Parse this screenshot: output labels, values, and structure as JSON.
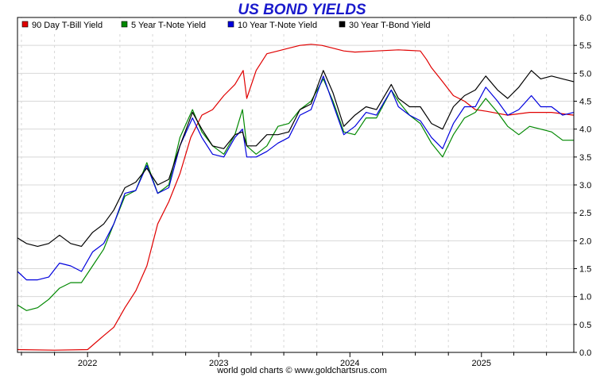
{
  "title": "US BOND YIELDS",
  "footer": "world gold charts © www.goldchartsrus.com",
  "colors": {
    "tbill": "#e00000",
    "note5": "#008800",
    "note10": "#0000dd",
    "bond30": "#000000",
    "grid": "#d8d8d8"
  },
  "chart_data": {
    "type": "line",
    "title": "US BOND YIELDS",
    "xlabel": "",
    "ylabel": "",
    "xlim": [
      "2021-06-20",
      "2025-09-15"
    ],
    "ylim": [
      0,
      6
    ],
    "y_ticks": [
      "0.0",
      "0.5",
      "1.0",
      "1.5",
      "2.0",
      "2.5",
      "3.0",
      "3.5",
      "4.0",
      "4.5",
      "5.0",
      "5.5",
      "6.0"
    ],
    "x_ticks": [
      {
        "label": "2022",
        "date": "2022-01-01"
      },
      {
        "label": "2023",
        "date": "2023-01-01"
      },
      {
        "label": "2024",
        "date": "2024-01-01"
      },
      {
        "label": "2025",
        "date": "2025-01-01"
      }
    ],
    "grid": true,
    "legend_position": "top",
    "series": [
      {
        "name": "90 Day T-Bill Yield",
        "key": "tbill",
        "points": [
          [
            "2021-06-20",
            0.05
          ],
          [
            "2021-10-01",
            0.04
          ],
          [
            "2022-01-01",
            0.05
          ],
          [
            "2022-02-15",
            0.3
          ],
          [
            "2022-03-15",
            0.45
          ],
          [
            "2022-04-15",
            0.8
          ],
          [
            "2022-05-15",
            1.1
          ],
          [
            "2022-06-15",
            1.55
          ],
          [
            "2022-07-15",
            2.3
          ],
          [
            "2022-08-15",
            2.7
          ],
          [
            "2022-09-15",
            3.2
          ],
          [
            "2022-10-15",
            3.85
          ],
          [
            "2022-11-15",
            4.25
          ],
          [
            "2022-12-15",
            4.35
          ],
          [
            "2023-01-15",
            4.6
          ],
          [
            "2023-02-15",
            4.8
          ],
          [
            "2023-03-10",
            5.05
          ],
          [
            "2023-03-20",
            4.55
          ],
          [
            "2023-04-15",
            5.05
          ],
          [
            "2023-05-15",
            5.35
          ],
          [
            "2023-06-15",
            5.4
          ],
          [
            "2023-07-15",
            5.45
          ],
          [
            "2023-08-15",
            5.5
          ],
          [
            "2023-09-15",
            5.52
          ],
          [
            "2023-10-15",
            5.5
          ],
          [
            "2023-11-15",
            5.45
          ],
          [
            "2023-12-15",
            5.4
          ],
          [
            "2024-01-15",
            5.38
          ],
          [
            "2024-03-15",
            5.4
          ],
          [
            "2024-05-15",
            5.42
          ],
          [
            "2024-07-15",
            5.4
          ],
          [
            "2024-08-01",
            5.25
          ],
          [
            "2024-08-15",
            5.1
          ],
          [
            "2024-09-15",
            4.85
          ],
          [
            "2024-10-15",
            4.6
          ],
          [
            "2024-11-15",
            4.5
          ],
          [
            "2024-12-15",
            4.35
          ],
          [
            "2025-01-15",
            4.32
          ],
          [
            "2025-03-15",
            4.25
          ],
          [
            "2025-05-15",
            4.3
          ],
          [
            "2025-07-15",
            4.3
          ],
          [
            "2025-09-15",
            4.25
          ]
        ]
      },
      {
        "name": "5 Year T-Note Yield",
        "key": "note5",
        "points": [
          [
            "2021-06-20",
            0.85
          ],
          [
            "2021-07-15",
            0.75
          ],
          [
            "2021-08-15",
            0.8
          ],
          [
            "2021-09-15",
            0.95
          ],
          [
            "2021-10-15",
            1.15
          ],
          [
            "2021-11-15",
            1.25
          ],
          [
            "2021-12-15",
            1.25
          ],
          [
            "2022-01-15",
            1.55
          ],
          [
            "2022-02-15",
            1.85
          ],
          [
            "2022-03-15",
            2.3
          ],
          [
            "2022-04-15",
            2.8
          ],
          [
            "2022-05-15",
            2.9
          ],
          [
            "2022-06-15",
            3.4
          ],
          [
            "2022-07-15",
            2.85
          ],
          [
            "2022-08-15",
            3.0
          ],
          [
            "2022-09-15",
            3.85
          ],
          [
            "2022-10-20",
            4.35
          ],
          [
            "2022-11-15",
            3.95
          ],
          [
            "2022-12-15",
            3.7
          ],
          [
            "2023-01-15",
            3.55
          ],
          [
            "2023-02-15",
            3.9
          ],
          [
            "2023-03-08",
            4.35
          ],
          [
            "2023-03-20",
            3.7
          ],
          [
            "2023-04-15",
            3.55
          ],
          [
            "2023-05-15",
            3.7
          ],
          [
            "2023-06-15",
            4.05
          ],
          [
            "2023-07-15",
            4.1
          ],
          [
            "2023-08-15",
            4.35
          ],
          [
            "2023-09-15",
            4.5
          ],
          [
            "2023-10-19",
            4.9
          ],
          [
            "2023-11-15",
            4.5
          ],
          [
            "2023-12-15",
            3.95
          ],
          [
            "2024-01-15",
            3.9
          ],
          [
            "2024-02-15",
            4.2
          ],
          [
            "2024-03-15",
            4.2
          ],
          [
            "2024-04-25",
            4.7
          ],
          [
            "2024-05-15",
            4.5
          ],
          [
            "2024-06-15",
            4.25
          ],
          [
            "2024-07-15",
            4.1
          ],
          [
            "2024-08-15",
            3.75
          ],
          [
            "2024-09-15",
            3.5
          ],
          [
            "2024-10-15",
            3.9
          ],
          [
            "2024-11-15",
            4.2
          ],
          [
            "2024-12-15",
            4.3
          ],
          [
            "2025-01-13",
            4.55
          ],
          [
            "2025-02-15",
            4.3
          ],
          [
            "2025-03-15",
            4.05
          ],
          [
            "2025-04-15",
            3.9
          ],
          [
            "2025-05-15",
            4.05
          ],
          [
            "2025-06-15",
            4.0
          ],
          [
            "2025-07-15",
            3.95
          ],
          [
            "2025-08-15",
            3.8
          ],
          [
            "2025-09-15",
            3.8
          ]
        ]
      },
      {
        "name": "10 Year T-Note Yield",
        "key": "note10",
        "points": [
          [
            "2021-06-20",
            1.45
          ],
          [
            "2021-07-15",
            1.3
          ],
          [
            "2021-08-15",
            1.3
          ],
          [
            "2021-09-15",
            1.35
          ],
          [
            "2021-10-15",
            1.6
          ],
          [
            "2021-11-15",
            1.55
          ],
          [
            "2021-12-15",
            1.45
          ],
          [
            "2022-01-15",
            1.8
          ],
          [
            "2022-02-15",
            1.95
          ],
          [
            "2022-03-15",
            2.3
          ],
          [
            "2022-04-15",
            2.85
          ],
          [
            "2022-05-15",
            2.9
          ],
          [
            "2022-06-15",
            3.35
          ],
          [
            "2022-07-15",
            2.85
          ],
          [
            "2022-08-15",
            2.95
          ],
          [
            "2022-09-15",
            3.7
          ],
          [
            "2022-10-20",
            4.2
          ],
          [
            "2022-11-15",
            3.85
          ],
          [
            "2022-12-15",
            3.55
          ],
          [
            "2023-01-15",
            3.5
          ],
          [
            "2023-02-15",
            3.85
          ],
          [
            "2023-03-08",
            4.0
          ],
          [
            "2023-03-20",
            3.5
          ],
          [
            "2023-04-15",
            3.5
          ],
          [
            "2023-05-15",
            3.6
          ],
          [
            "2023-06-15",
            3.75
          ],
          [
            "2023-07-15",
            3.85
          ],
          [
            "2023-08-15",
            4.25
          ],
          [
            "2023-09-15",
            4.35
          ],
          [
            "2023-10-19",
            4.95
          ],
          [
            "2023-11-15",
            4.45
          ],
          [
            "2023-12-15",
            3.9
          ],
          [
            "2024-01-15",
            4.05
          ],
          [
            "2024-02-15",
            4.3
          ],
          [
            "2024-03-15",
            4.25
          ],
          [
            "2024-04-25",
            4.7
          ],
          [
            "2024-05-15",
            4.4
          ],
          [
            "2024-06-15",
            4.25
          ],
          [
            "2024-07-15",
            4.15
          ],
          [
            "2024-08-15",
            3.85
          ],
          [
            "2024-09-15",
            3.65
          ],
          [
            "2024-10-15",
            4.1
          ],
          [
            "2024-11-15",
            4.4
          ],
          [
            "2024-12-15",
            4.4
          ],
          [
            "2025-01-13",
            4.75
          ],
          [
            "2025-02-15",
            4.5
          ],
          [
            "2025-03-15",
            4.25
          ],
          [
            "2025-04-15",
            4.35
          ],
          [
            "2025-05-20",
            4.6
          ],
          [
            "2025-06-15",
            4.4
          ],
          [
            "2025-07-15",
            4.4
          ],
          [
            "2025-08-15",
            4.25
          ],
          [
            "2025-09-15",
            4.3
          ]
        ]
      },
      {
        "name": "30 Year T-Bond Yield",
        "key": "bond30",
        "points": [
          [
            "2021-06-20",
            2.05
          ],
          [
            "2021-07-15",
            1.95
          ],
          [
            "2021-08-15",
            1.9
          ],
          [
            "2021-09-15",
            1.95
          ],
          [
            "2021-10-15",
            2.1
          ],
          [
            "2021-11-15",
            1.95
          ],
          [
            "2021-12-15",
            1.9
          ],
          [
            "2022-01-15",
            2.15
          ],
          [
            "2022-02-15",
            2.3
          ],
          [
            "2022-03-15",
            2.55
          ],
          [
            "2022-04-15",
            2.95
          ],
          [
            "2022-05-15",
            3.05
          ],
          [
            "2022-06-15",
            3.3
          ],
          [
            "2022-07-15",
            3.0
          ],
          [
            "2022-08-15",
            3.1
          ],
          [
            "2022-09-15",
            3.7
          ],
          [
            "2022-10-20",
            4.3
          ],
          [
            "2022-11-15",
            4.0
          ],
          [
            "2022-12-15",
            3.7
          ],
          [
            "2023-01-15",
            3.65
          ],
          [
            "2023-02-15",
            3.9
          ],
          [
            "2023-03-08",
            3.95
          ],
          [
            "2023-03-20",
            3.7
          ],
          [
            "2023-04-15",
            3.7
          ],
          [
            "2023-05-15",
            3.9
          ],
          [
            "2023-06-15",
            3.9
          ],
          [
            "2023-07-15",
            3.95
          ],
          [
            "2023-08-15",
            4.35
          ],
          [
            "2023-09-15",
            4.45
          ],
          [
            "2023-10-19",
            5.05
          ],
          [
            "2023-11-15",
            4.65
          ],
          [
            "2023-12-15",
            4.05
          ],
          [
            "2024-01-15",
            4.25
          ],
          [
            "2024-02-15",
            4.4
          ],
          [
            "2024-03-15",
            4.35
          ],
          [
            "2024-04-25",
            4.8
          ],
          [
            "2024-05-15",
            4.55
          ],
          [
            "2024-06-15",
            4.4
          ],
          [
            "2024-07-15",
            4.4
          ],
          [
            "2024-08-15",
            4.1
          ],
          [
            "2024-09-15",
            4.0
          ],
          [
            "2024-10-15",
            4.4
          ],
          [
            "2024-11-15",
            4.6
          ],
          [
            "2024-12-15",
            4.7
          ],
          [
            "2025-01-13",
            4.95
          ],
          [
            "2025-02-15",
            4.7
          ],
          [
            "2025-03-15",
            4.55
          ],
          [
            "2025-04-15",
            4.75
          ],
          [
            "2025-05-20",
            5.05
          ],
          [
            "2025-06-15",
            4.9
          ],
          [
            "2025-07-15",
            4.95
          ],
          [
            "2025-08-15",
            4.9
          ],
          [
            "2025-09-15",
            4.85
          ]
        ]
      }
    ]
  }
}
